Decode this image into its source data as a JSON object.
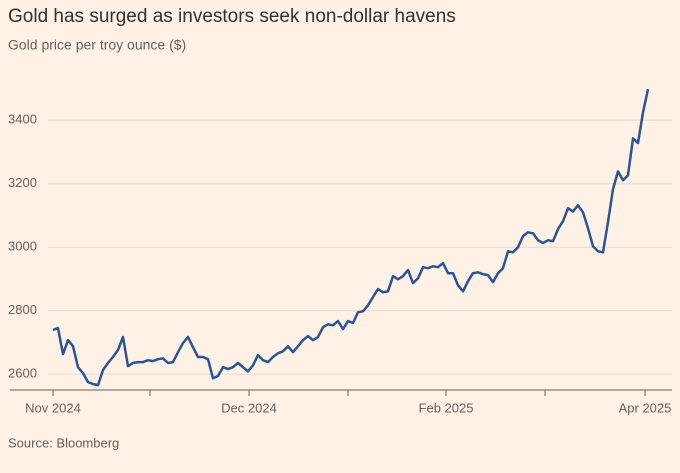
{
  "chart_data": {
    "type": "line",
    "title": "Gold has surged as investors seek non-dollar havens",
    "subtitle": "Gold price per troy ounce ($)",
    "source": "Source: Bloomberg",
    "color": "#2b5592",
    "grid": true,
    "values": [
      2739,
      2745,
      2663,
      2707,
      2688,
      2622,
      2603,
      2575,
      2569,
      2565,
      2613,
      2635,
      2654,
      2676,
      2717,
      2625,
      2635,
      2638,
      2638,
      2644,
      2641,
      2647,
      2650,
      2635,
      2638,
      2669,
      2698,
      2717,
      2685,
      2654,
      2654,
      2647,
      2587,
      2594,
      2622,
      2616,
      2622,
      2635,
      2622,
      2609,
      2628,
      2660,
      2644,
      2638,
      2654,
      2666,
      2672,
      2688,
      2669,
      2688,
      2707,
      2720,
      2707,
      2717,
      2748,
      2757,
      2754,
      2767,
      2742,
      2767,
      2761,
      2795,
      2798,
      2817,
      2843,
      2868,
      2858,
      2861,
      2909,
      2899,
      2909,
      2928,
      2887,
      2902,
      2937,
      2934,
      2940,
      2937,
      2950,
      2918,
      2918,
      2880,
      2861,
      2893,
      2918,
      2921,
      2915,
      2912,
      2890,
      2918,
      2934,
      2987,
      2984,
      3000,
      3035,
      3047,
      3044,
      3022,
      3013,
      3022,
      3019,
      3057,
      3082,
      3123,
      3113,
      3132,
      3110,
      3060,
      3003,
      2987,
      2984,
      3079,
      3183,
      3239,
      3211,
      3227,
      3343,
      3328,
      3425,
      3498
    ],
    "xlim": [
      0,
      119
    ],
    "xticks": [
      {
        "value": 0,
        "label": "Nov 2024"
      },
      {
        "value": 39.2,
        "label": "Dec 2024"
      },
      {
        "value": 78.6,
        "label": "Feb 2025"
      },
      {
        "value": 118.4,
        "label": "Apr 2025"
      }
    ],
    "xminorticks": [
      19.4,
      59,
      98.4
    ],
    "ylim": [
      2550,
      3590
    ],
    "yticks": [
      2600,
      2800,
      3000,
      3200,
      3400
    ]
  }
}
